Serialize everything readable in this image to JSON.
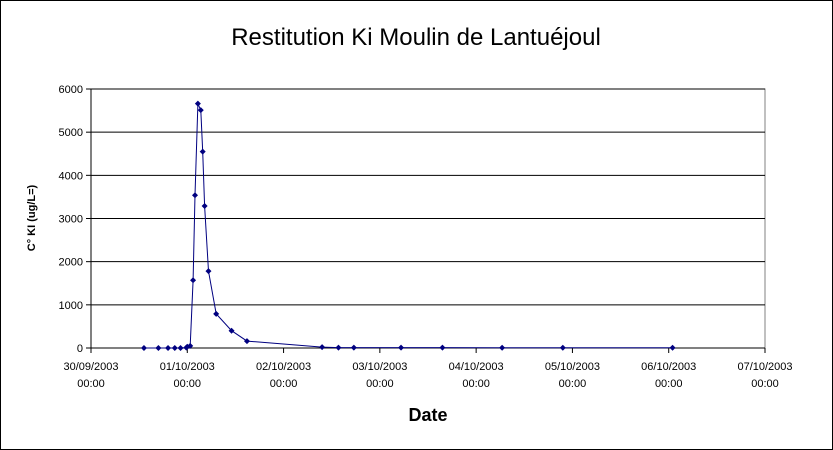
{
  "chart_data": {
    "type": "scatter",
    "title": "Restitution Ki Moulin de Lantuéjoul",
    "xlabel": "Date",
    "ylabel": "C° KI (ug/L=)",
    "ylim": [
      0,
      6000
    ],
    "yticks": [
      "0",
      "1000",
      "2000",
      "3000",
      "4000",
      "5000",
      "6000"
    ],
    "xlim": [
      0,
      7
    ],
    "xticks": [
      [
        "30/09/2003",
        "00:00"
      ],
      [
        "01/10/2003",
        "00:00"
      ],
      [
        "02/10/2003",
        "00:00"
      ],
      [
        "03/10/2003",
        "00:00"
      ],
      [
        "04/10/2003",
        "00:00"
      ],
      [
        "05/10/2003",
        "00:00"
      ],
      [
        "06/10/2003",
        "00:00"
      ],
      [
        "07/10/2003",
        "00:00"
      ]
    ],
    "grid": "horizontal major gridlines",
    "legend": "none",
    "colors": {
      "series": "#000080",
      "grid": "#000000",
      "plot_bg": "#ffffff"
    },
    "series": [
      {
        "x": [
          0.55,
          0.7,
          0.8,
          0.87,
          0.93,
          0.99,
          1.0,
          1.03,
          1.06,
          1.08,
          1.11,
          1.14,
          1.16,
          1.18,
          1.22,
          1.3,
          1.46,
          1.62,
          2.4,
          2.57,
          2.73,
          3.22,
          3.65,
          4.27,
          4.9,
          6.04
        ],
        "y": [
          0,
          0,
          0,
          0,
          0,
          10,
          30,
          50,
          1570,
          3540,
          5660,
          5510,
          4550,
          3290,
          1780,
          790,
          400,
          160,
          20,
          10,
          10,
          10,
          10,
          5,
          5,
          5
        ]
      }
    ]
  }
}
